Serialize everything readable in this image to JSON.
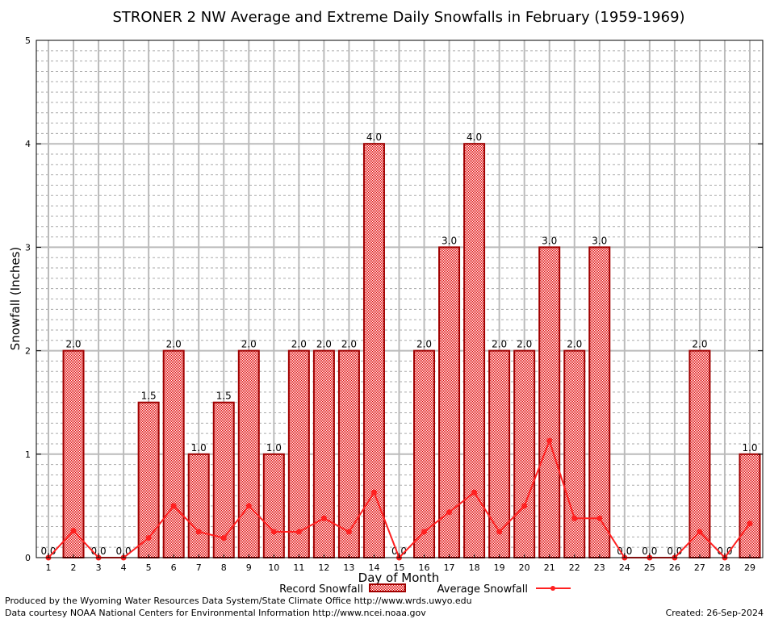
{
  "chart_data": {
    "type": "bar",
    "title": "STRONER 2 NW Average and Extreme Daily Snowfalls in February (1959-1969)",
    "xlabel": "Day of Month",
    "ylabel": "Snowfall (Inches)",
    "ylim": [
      0,
      5
    ],
    "yticks": [
      "0",
      "1",
      "2",
      "3",
      "4",
      "5"
    ],
    "grid": true,
    "legend_placement": "bottom",
    "categories": [
      "1",
      "2",
      "3",
      "4",
      "5",
      "6",
      "7",
      "8",
      "9",
      "10",
      "11",
      "12",
      "13",
      "14",
      "15",
      "16",
      "17",
      "18",
      "19",
      "20",
      "21",
      "22",
      "23",
      "24",
      "25",
      "26",
      "27",
      "28",
      "29"
    ],
    "series": [
      {
        "name": "Record Snowfall",
        "type": "bar",
        "color": "#ff0000",
        "values": [
          0.0,
          2.0,
          0.0,
          0.0,
          1.5,
          2.0,
          1.0,
          1.5,
          2.0,
          1.0,
          2.0,
          2.0,
          2.0,
          4.0,
          0.0,
          2.0,
          3.0,
          4.0,
          2.0,
          2.0,
          3.0,
          2.0,
          3.0,
          0.0,
          0.0,
          0.0,
          2.0,
          0.0,
          1.0
        ],
        "labels": [
          "0.0",
          "2.0",
          "0.0",
          "0.0",
          "1.5",
          "2.0",
          "1.0",
          "1.5",
          "2.0",
          "1.0",
          "2.0",
          "2.0",
          "2.0",
          "4.0",
          "0.0",
          "2.0",
          "3.0",
          "4.0",
          "2.0",
          "2.0",
          "3.0",
          "2.0",
          "3.0",
          "0.0",
          "0.0",
          "0.0",
          "2.0",
          "0.0",
          "1.0"
        ]
      },
      {
        "name": "Average Snowfall",
        "type": "line",
        "color": "#ff2020",
        "values": [
          0,
          0.26,
          0,
          0,
          0.19,
          0.5,
          0.25,
          0.19,
          0.5,
          0.25,
          0.25,
          0.38,
          0.25,
          0.63,
          0,
          0.25,
          0.44,
          0.63,
          0.25,
          0.5,
          1.13,
          0.38,
          0.38,
          0,
          0,
          0,
          0.25,
          0,
          0.33
        ]
      }
    ]
  },
  "footer": {
    "produced": "Produced by the Wyoming Water Resources Data System/State Climate Office http://www.wrds.uwyo.edu",
    "courtesy": "Data courtesy NOAA National Centers for Environmental Information http://www.ncei.noaa.gov",
    "created": "Created: 26-Sep-2024"
  }
}
